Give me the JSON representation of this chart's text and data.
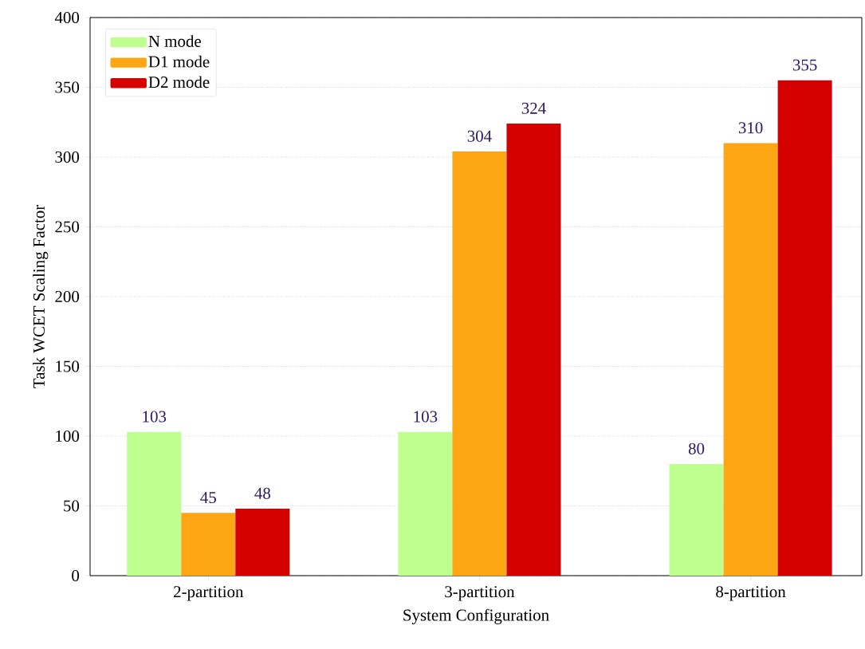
{
  "chart_data": {
    "type": "bar",
    "xlabel": "System Configuration",
    "ylabel": "Task WCET Scaling Factor",
    "categories": [
      "2-partition",
      "3-partition",
      "8-partition"
    ],
    "series": [
      {
        "name": "N mode",
        "color": "#bfff8f",
        "values": [
          103,
          103,
          80
        ]
      },
      {
        "name": "D1 mode",
        "color": "#ffa615",
        "values": [
          45,
          304,
          310
        ]
      },
      {
        "name": "D2 mode",
        "color": "#d40000",
        "values": [
          48,
          324,
          355
        ]
      }
    ],
    "ylim": [
      0,
      400
    ],
    "yticks": [
      0,
      50,
      100,
      150,
      200,
      250,
      300,
      350,
      400
    ],
    "grid": "y",
    "legend": "top left",
    "data_labels": true
  }
}
